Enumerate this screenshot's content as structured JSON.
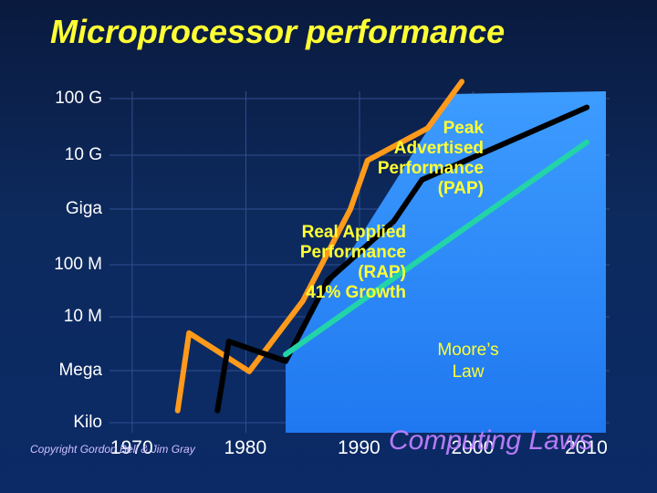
{
  "title": "Microprocessor performance",
  "footer": {
    "copyright": "Copyright Gordon Bell & Jim Gray",
    "watermark": "Computing Laws"
  },
  "annotations": {
    "peak_lines": [
      "Peak",
      "Advertised",
      "Performance",
      "(PAP)"
    ],
    "rap_lines": [
      "Real Applied",
      "Performance",
      "(RAP)",
      "41% Growth"
    ],
    "moore_lines": [
      "Moore’s",
      "Law"
    ]
  },
  "chart_data": {
    "type": "line",
    "title": "Microprocessor performance",
    "xlabel": "",
    "ylabel": "",
    "y_scale": "log",
    "x_ticks": [
      "1970",
      "1980",
      "1990",
      "2000",
      "2010"
    ],
    "y_ticks": [
      "Kilo",
      "Mega",
      "10 M",
      "100 M",
      "Giga",
      "10 G",
      "100 G"
    ],
    "y_tick_values": [
      1000,
      1000000,
      10000000,
      100000000,
      1000000000,
      10000000000,
      100000000000
    ],
    "xlim": [
      1968,
      2012
    ],
    "grid": true,
    "colors": {
      "peak": "#ff9a1a",
      "rap": "#000000",
      "moore_line": "#22d4a8",
      "moore_area": "#2a8cff"
    },
    "series": [
      {
        "name": "Peak Advertised Performance (PAP)",
        "points": [
          [
            1974,
            5000
          ],
          [
            1975,
            5000000
          ],
          [
            1980.3,
            900000
          ],
          [
            1985,
            20000000
          ],
          [
            1989.2,
            1000000000
          ],
          [
            1990.7,
            8000000000
          ],
          [
            1996,
            30000000000
          ],
          [
            1999,
            200000000000
          ]
        ]
      },
      {
        "name": "Real Applied Performance (RAP)",
        "points": [
          [
            1977.5,
            5000
          ],
          [
            1978.5,
            3500000
          ],
          [
            1983.5,
            1500000
          ],
          [
            1987.2,
            50000000
          ],
          [
            1993,
            600000000
          ],
          [
            1995.5,
            3500000000
          ],
          [
            2010,
            70000000000
          ]
        ]
      },
      {
        "name": "Moore’s Law",
        "points": [
          [
            1983.5,
            2000000
          ],
          [
            2010,
            17000000000
          ]
        ]
      }
    ]
  }
}
